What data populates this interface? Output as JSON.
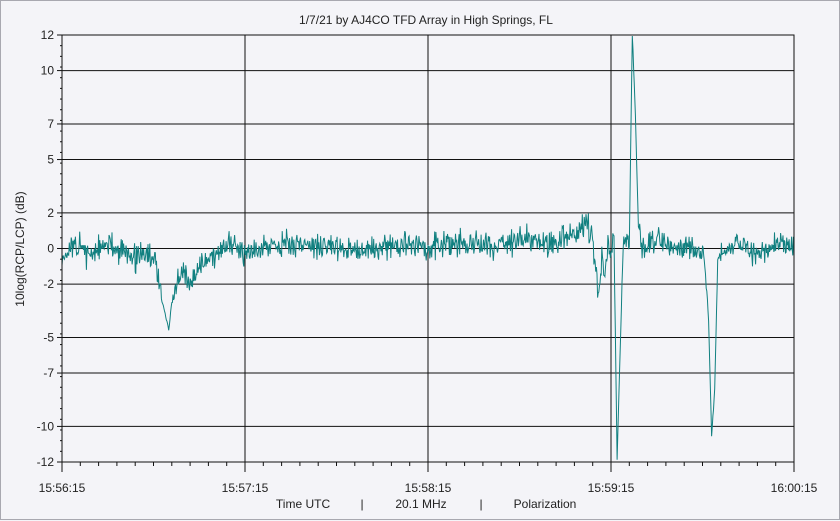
{
  "chart_data": {
    "type": "line",
    "title": "1/7/21  by  AJ4CO TFD Array  in  High Springs, FL",
    "ylabel": "10log(RCP/LCP) (dB)",
    "xlabel_parts": [
      "Time UTC",
      "|",
      "20.1 MHz",
      "|",
      "Polarization"
    ],
    "x_tick_labels": [
      "15:56:15",
      "15:57:15",
      "15:58:15",
      "15:59:15",
      "16:00:15"
    ],
    "x_range_seconds_from_first_tick": [
      0,
      240
    ],
    "y_tick_labels": [
      "12",
      "10",
      "7",
      "5",
      "2",
      "0",
      "-2",
      "-5",
      "-7",
      "-10",
      "-12"
    ],
    "ylim": [
      -12,
      12
    ],
    "grid": true,
    "series": [
      {
        "color": "#118080",
        "x": [
          0,
          5,
          10,
          15,
          20,
          25,
          28,
          30,
          31,
          32,
          33,
          34,
          35,
          36,
          37,
          38,
          40,
          42,
          44,
          46,
          48,
          50,
          55,
          60,
          70,
          80,
          90,
          100,
          110,
          120,
          130,
          140,
          150,
          160,
          165,
          170,
          172,
          173,
          174,
          175,
          176,
          177,
          178,
          179,
          180,
          181,
          182,
          184,
          186,
          187,
          188,
          189,
          190,
          191,
          192,
          193,
          194,
          195,
          200,
          205,
          210,
          211,
          212,
          213,
          214,
          215,
          220,
          225,
          230,
          235,
          240
        ],
        "y": [
          -0.4,
          0.1,
          -0.3,
          0.2,
          -0.2,
          -0.5,
          -0.3,
          -0.6,
          -1.2,
          -2.0,
          -3.0,
          -3.8,
          -4.6,
          -3.0,
          -2.5,
          -1.8,
          -1.4,
          -2.2,
          -1.2,
          -0.8,
          -0.5,
          -0.3,
          0.1,
          -0.1,
          0.3,
          0.2,
          0.1,
          -0.1,
          0.2,
          0.1,
          0.3,
          0.2,
          0.5,
          0.3,
          0.6,
          1.0,
          1.6,
          0.9,
          0.3,
          -1.0,
          -2.8,
          -0.5,
          -1.8,
          0.2,
          0.0,
          0.5,
          -11.8,
          0.2,
          0.4,
          12.0,
          7.5,
          1.0,
          0.5,
          0.2,
          0.3,
          0.4,
          0.1,
          0.6,
          0.0,
          0.3,
          -0.2,
          -1.5,
          -4.0,
          -10.5,
          -8.0,
          -0.5,
          0.2,
          0.1,
          -0.4,
          0.3,
          0.2
        ]
      }
    ]
  }
}
